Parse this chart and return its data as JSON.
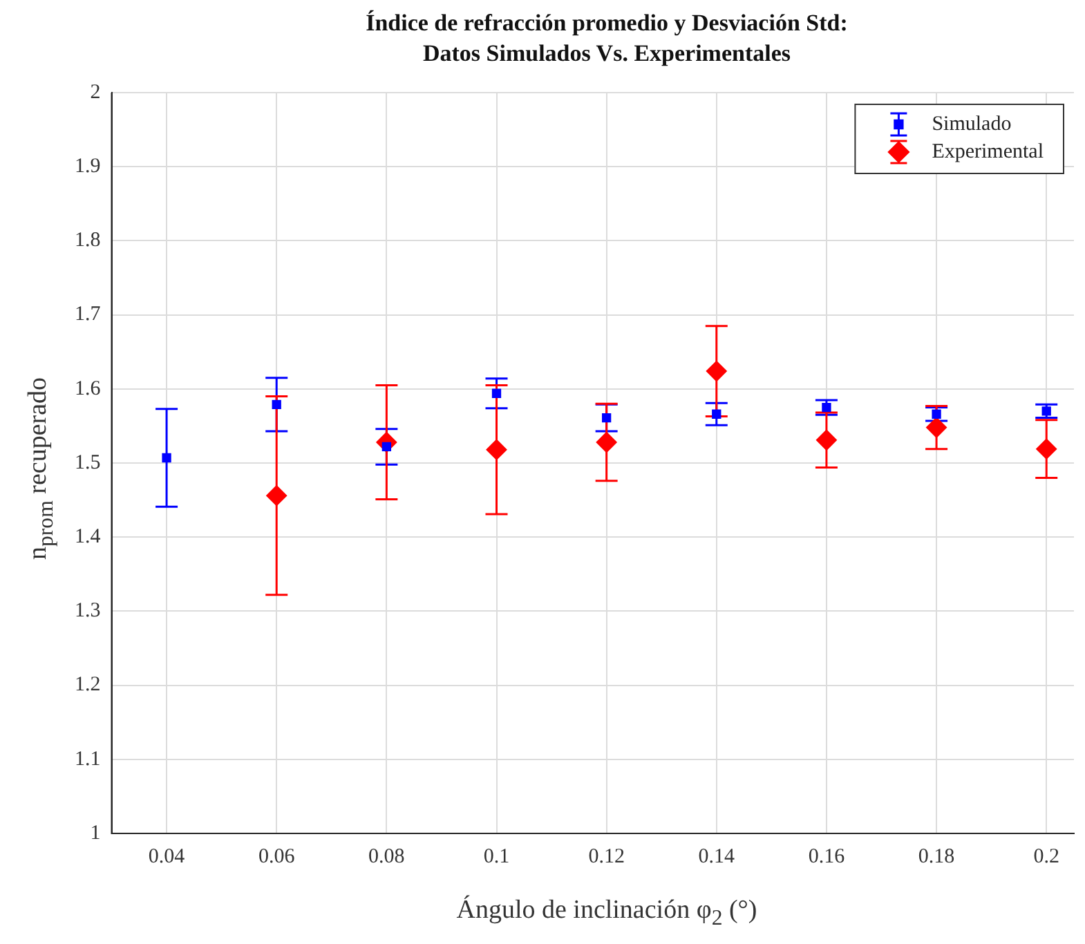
{
  "chart_data": {
    "type": "scatter",
    "title": "Índice de refracción promedio y Desviación Std:\nDatos Simulados Vs. Experimentales",
    "xlabel": "Ángulo de inclinación φ$_{2}$ (°)",
    "ylabel": "n$_{prom}$ recuperado",
    "xlim": [
      0.03,
      0.205
    ],
    "xticks": [
      0.04,
      0.06,
      0.08,
      0.1,
      0.12,
      0.14,
      0.16,
      0.18,
      0.2
    ],
    "ylim": [
      1,
      2
    ],
    "yticks": [
      1,
      1.1,
      1.2,
      1.3,
      1.4,
      1.5,
      1.6,
      1.7,
      1.8,
      1.9,
      2
    ],
    "grid": true,
    "legend": "top right",
    "series": [
      {
        "name": "Simulado",
        "color": "#0000ff",
        "marker": "square",
        "x": [
          0.04,
          0.06,
          0.08,
          0.1,
          0.12,
          0.14,
          0.16,
          0.18,
          0.2
        ],
        "values": [
          1.507,
          1.579,
          1.522,
          1.594,
          1.561,
          1.566,
          1.575,
          1.566,
          1.57
        ],
        "errors": [
          0.066,
          0.036,
          0.024,
          0.02,
          0.018,
          0.015,
          0.01,
          0.009,
          0.009
        ]
      },
      {
        "name": "Experimental",
        "color": "#ff0000",
        "marker": "diamond",
        "x": [
          0.06,
          0.08,
          0.1,
          0.12,
          0.14,
          0.16,
          0.18,
          0.2
        ],
        "values": [
          1.456,
          1.528,
          1.518,
          1.528,
          1.624,
          1.531,
          1.548,
          1.519
        ],
        "errors": [
          0.134,
          0.077,
          0.087,
          0.052,
          0.061,
          0.037,
          0.029,
          0.039
        ]
      }
    ]
  }
}
